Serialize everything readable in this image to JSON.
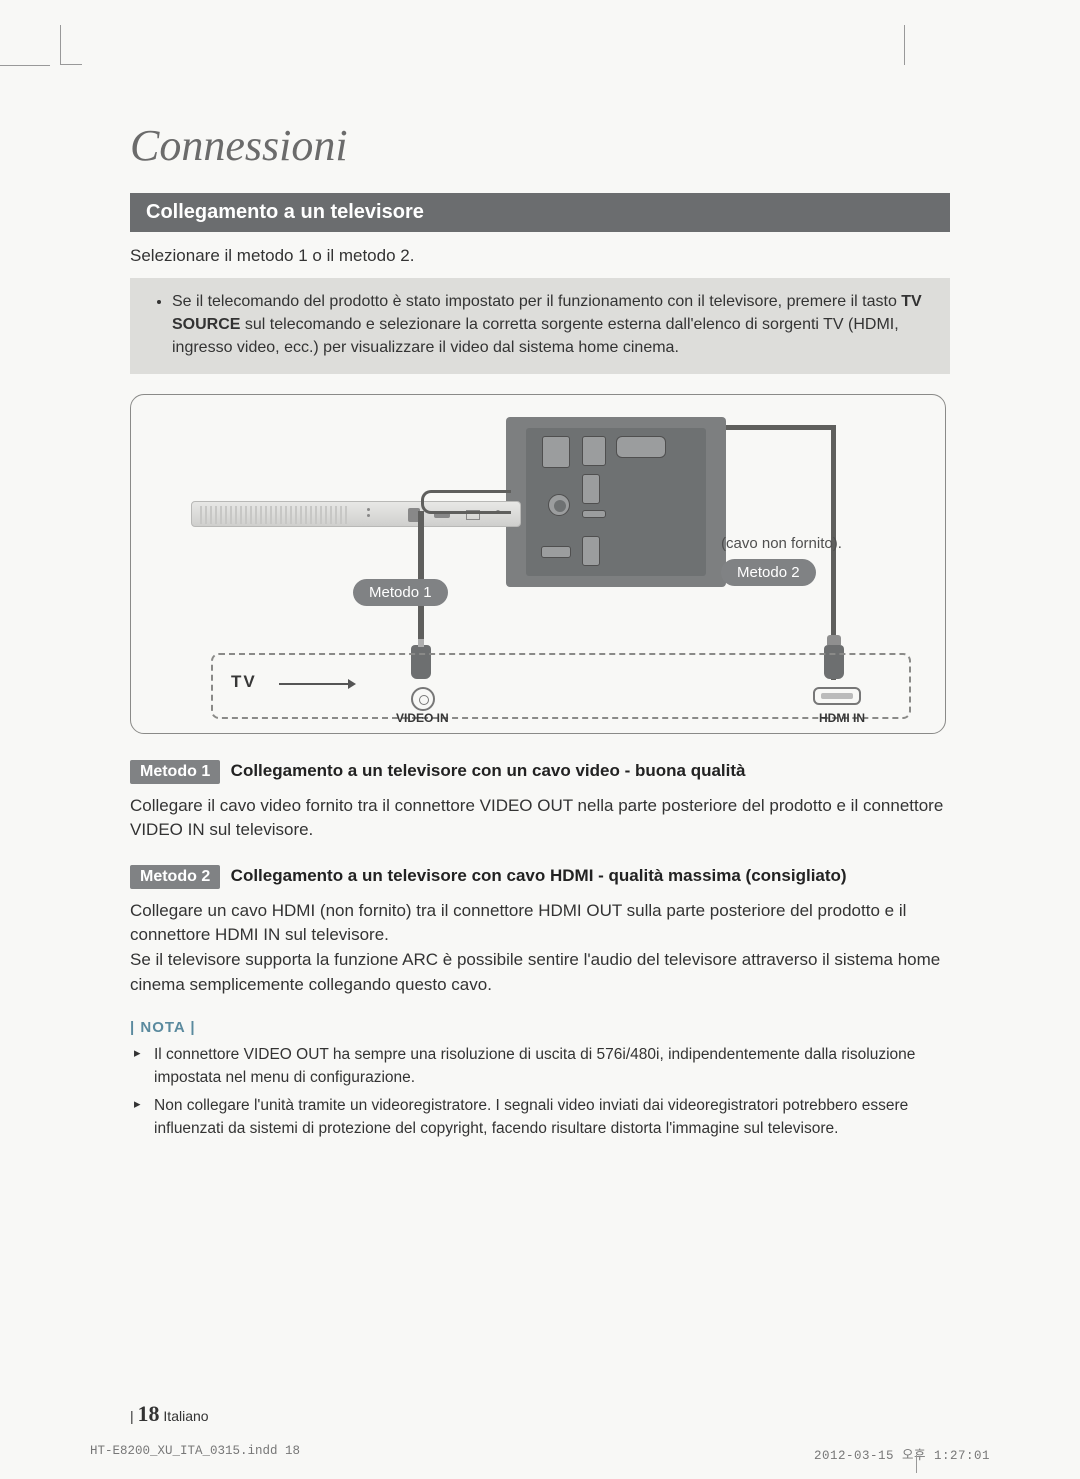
{
  "page": {
    "title": "Connessioni",
    "section_header": "Collegamento a un televisore",
    "intro": "Selezionare il metodo 1 o il metodo 2.",
    "highlight_bullet_pre": "Se il telecomando del prodotto è stato impostato per il funzionamento con il televisore, premere il tasto ",
    "highlight_bullet_bold": "TV SOURCE",
    "highlight_bullet_post": " sul telecomando e selezionare la corretta sorgente esterna dall'elenco di sorgenti TV (HDMI, ingresso video, ecc.) per visualizzare il video dal sistema home cinema."
  },
  "diagram": {
    "tv_label": "TV",
    "video_in": "VIDEO IN",
    "hdmi_in": "HDMI IN",
    "cavo_note": "(cavo non fornito).",
    "metodo1_badge": "Metodo 1",
    "metodo2_badge": "Metodo 2",
    "colors": {
      "border": "#8a8a88",
      "badge_bg": "#808284",
      "badge_fg": "#ffffff",
      "panel_bg": "#7d7f80"
    }
  },
  "methods": {
    "m1_badge": "Metodo 1",
    "m1_title": "Collegamento a un televisore con un cavo video - buona qualità",
    "m1_desc": "Collegare il cavo video fornito tra il connettore VIDEO OUT nella parte posteriore del prodotto e il connettore VIDEO IN sul televisore.",
    "m2_badge": "Metodo 2",
    "m2_title": "Collegamento a un televisore con cavo HDMI - qualità massima (consigliato)",
    "m2_desc": "Collegare un cavo HDMI (non fornito) tra il connettore HDMI OUT sulla parte posteriore del prodotto e il connettore HDMI IN sul televisore.\nSe il televisore supporta la funzione ARC è possibile sentire l'audio del televisore attraverso il sistema home cinema semplicemente collegando questo cavo."
  },
  "nota": {
    "label": "| NOTA |",
    "items": [
      "Il connettore VIDEO OUT ha sempre una risoluzione di uscita di 576i/480i, indipendentemente dalla risoluzione impostata nel menu di configurazione.",
      "Non collegare l'unità tramite un videoregistratore. I segnali video inviati dai videoregistratori potrebbero essere influenzati da sistemi di protezione del copyright, facendo risultare distorta l'immagine sul televisore."
    ]
  },
  "footer": {
    "bar": "|",
    "pagenum": "18",
    "lang": "Italiano",
    "print_left": "HT-E8200_XU_ITA_0315.indd   18",
    "print_right": "2012-03-15   오후 1:27:01"
  }
}
